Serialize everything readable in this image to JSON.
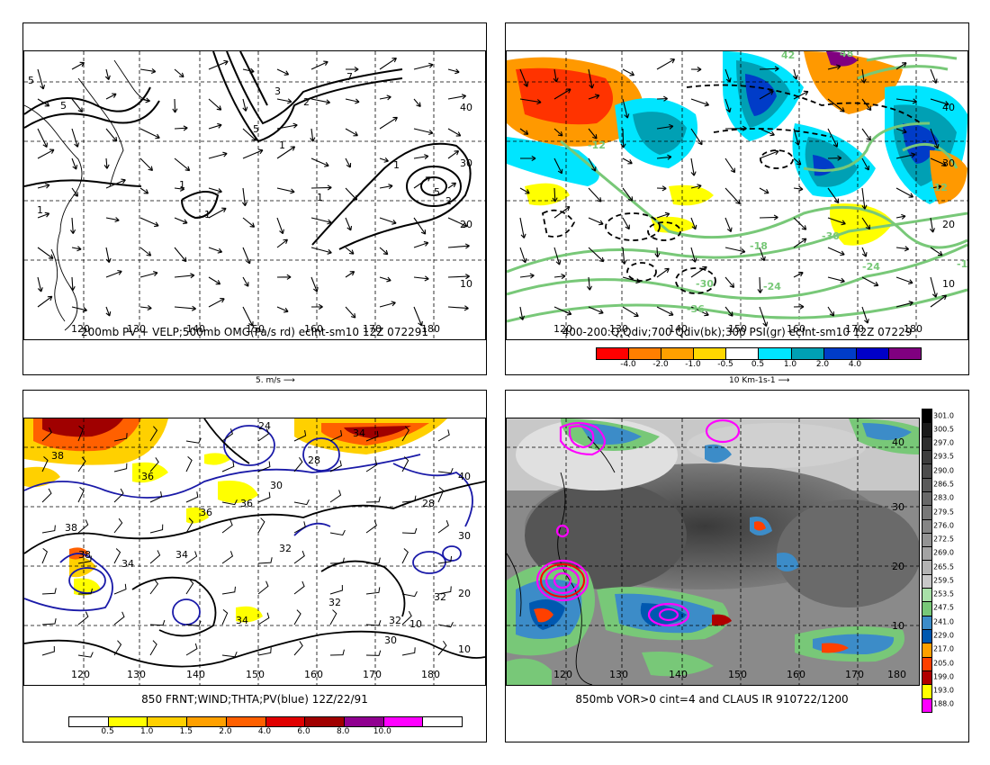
{
  "panels": [
    {
      "id": "p1",
      "title": "200mb PV + VELP;500mb OMG(Pa/s rd) ecInt-sm10 12Z 072291",
      "scale_label": "5. m/s",
      "scale_arrow": "⟶"
    },
    {
      "id": "p2",
      "title": "400-200:Q,Qdiv;700 Qdiv(bk);300 PSI(gr) ecInt-sm10 12Z 07229",
      "scale_label": "10 Km-1s-1",
      "scale_arrow": "⟶",
      "colorbar": {
        "labels": [
          "-4.0",
          "-2.0",
          "-1.0",
          "-0.5",
          "0.5",
          "1.0",
          "2.0",
          "4.0"
        ],
        "colors": [
          "#ff0000",
          "#ff7f00",
          "#ffa000",
          "#ffd700",
          "#ffffff",
          "#00e5ff",
          "#00a0b4",
          "#003cc8",
          "#0000c8",
          "#800080"
        ]
      }
    },
    {
      "id": "p3",
      "title": "850 FRNT;WIND;THTA;PV(blue) 12Z/22/91",
      "colorbar": {
        "labels": [
          "0.5",
          "1.0",
          "1.5",
          "2.0",
          "4.0",
          "6.0",
          "8.0",
          "10.0"
        ],
        "colors": [
          "#ffffff",
          "#ffff00",
          "#ffd000",
          "#ffa000",
          "#ff6000",
          "#e00000",
          "#a00000",
          "#900090",
          "#ff00ff",
          "#ffffff"
        ]
      }
    },
    {
      "id": "p4",
      "title": "850mb VOR>0 cint=4 and CLAUS IR 910722/1200",
      "colorbar": {
        "labels": [
          "301.0",
          "300.5",
          "297.0",
          "293.5",
          "290.0",
          "286.5",
          "283.0",
          "279.5",
          "276.0",
          "272.5",
          "269.0",
          "265.5",
          "259.5",
          "253.5",
          "247.5",
          "241.0",
          "229.0",
          "217.0",
          "205.0",
          "199.0",
          "193.0",
          "188.0"
        ],
        "colors": [
          "#000000",
          "#1a1a1a",
          "#2e2e2e",
          "#3d3d3d",
          "#4c4c4c",
          "#5a5a5a",
          "#686868",
          "#777777",
          "#858585",
          "#939393",
          "#a3a3a3",
          "#b3b3b3",
          "#c8c8c8",
          "#a8e0a8",
          "#78c878",
          "#3c8cc8",
          "#0058b0",
          "#ffa000",
          "#ff4000",
          "#b00000",
          "#ffff00",
          "#ff00ff"
        ]
      }
    }
  ],
  "lon_labels": [
    "120",
    "130",
    "140",
    "150",
    "160",
    "170",
    "180"
  ],
  "lat_labels": [
    "10",
    "20",
    "30",
    "40"
  ],
  "contour_labels_p1": [
    "5",
    "5",
    "3",
    "2",
    "7",
    "1",
    "5",
    "1",
    "1",
    "5",
    "1",
    "1",
    "2",
    "1",
    "40",
    "30",
    "20",
    "10"
  ],
  "contour_labels_p2": [
    "-12",
    "-18",
    "-24",
    "-30",
    "-36",
    "-24",
    "-18",
    "-30",
    "-12",
    "42",
    "48"
  ],
  "contour_labels_p3": [
    "24",
    "34",
    "28",
    "30",
    "36",
    "38",
    "36",
    "38",
    "32",
    "34",
    "30",
    "34",
    "32",
    "28",
    "32",
    "36",
    "36",
    "32"
  ]
}
